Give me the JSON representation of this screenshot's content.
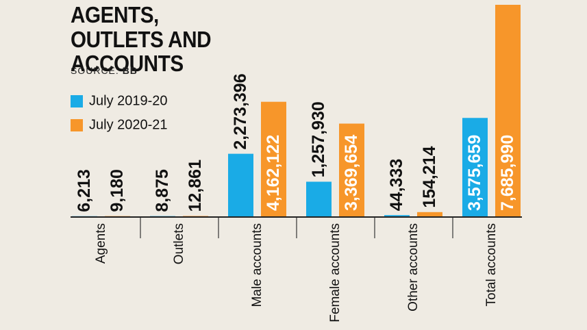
{
  "chart_data": {
    "type": "bar",
    "title": "AGENTS, OUTLETS AND ACCOUNTS",
    "source_label": "SOURCE:",
    "source": "BB",
    "categories": [
      "Agents",
      "Outlets",
      "Male accounts",
      "Female accounts",
      "Other accounts",
      "Total accounts"
    ],
    "series": [
      {
        "name": "July 2019-20",
        "color": "#1aabe6",
        "values": [
          6213,
          8875,
          2273396,
          1257930,
          44333,
          3575659
        ],
        "value_labels": [
          "6,213",
          "8,875",
          "2,273,396",
          "1,257,930",
          "44,333",
          "3,575,659"
        ]
      },
      {
        "name": "July 2020-21",
        "color": "#f7962a",
        "values": [
          9180,
          12861,
          4162122,
          3369654,
          154214,
          7685990
        ],
        "value_labels": [
          "9,180",
          "12,861",
          "4,162,122",
          "3,369,654",
          "154,214",
          "7,685,990"
        ]
      }
    ]
  }
}
